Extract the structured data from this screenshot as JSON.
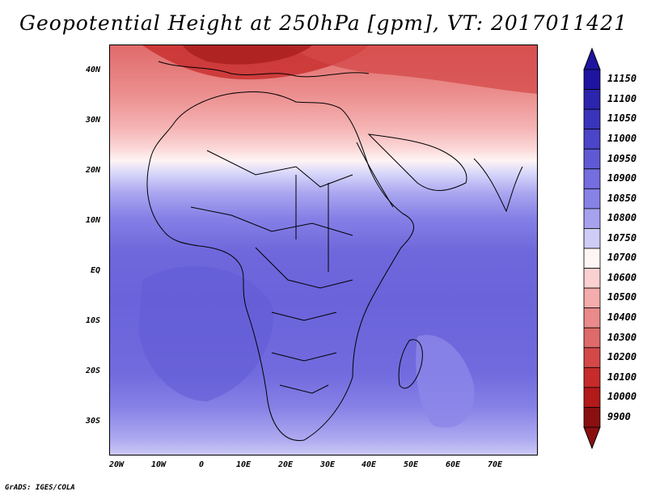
{
  "title": "Geopotential Height at 250hPa [gpm], VT: 2017011421",
  "footer": "GrADS: IGES/COLA",
  "map": {
    "region": "Africa",
    "lon_range": [
      -23,
      80
    ],
    "lat_range": [
      -37,
      45
    ],
    "y_ticks": [
      {
        "lat": 40,
        "label": "40N"
      },
      {
        "lat": 30,
        "label": "30N"
      },
      {
        "lat": 20,
        "label": "20N"
      },
      {
        "lat": 10,
        "label": "10N"
      },
      {
        "lat": 0,
        "label": "EQ"
      },
      {
        "lat": -10,
        "label": "10S"
      },
      {
        "lat": -20,
        "label": "20S"
      },
      {
        "lat": -30,
        "label": "30S"
      }
    ],
    "x_ticks": [
      {
        "lon": -20,
        "label": "20W"
      },
      {
        "lon": -10,
        "label": "10W"
      },
      {
        "lon": 0,
        "label": "0"
      },
      {
        "lon": 10,
        "label": "10E"
      },
      {
        "lon": 20,
        "label": "20E"
      },
      {
        "lon": 30,
        "label": "30E"
      },
      {
        "lon": 40,
        "label": "40E"
      },
      {
        "lon": 50,
        "label": "50E"
      },
      {
        "lon": 60,
        "label": "60E"
      },
      {
        "lon": 70,
        "label": "70E"
      }
    ]
  },
  "colorbar": {
    "levels": [
      "11150",
      "11100",
      "11050",
      "11000",
      "10950",
      "10900",
      "10850",
      "10800",
      "10750",
      "10700",
      "10600",
      "10500",
      "10400",
      "10300",
      "10200",
      "10100",
      "10000",
      "9900"
    ],
    "colors": [
      "#1e14a0",
      "#2b24ad",
      "#3a34bb",
      "#4b45c8",
      "#5f59d4",
      "#746edf",
      "#8782e6",
      "#a6a2ee",
      "#cfcdf7",
      "#fff5f5",
      "#fbd0d0",
      "#f4acac",
      "#ea8a8a",
      "#df6a6a",
      "#d44848",
      "#c72b2b",
      "#b31a1a",
      "#8a1010"
    ]
  }
}
